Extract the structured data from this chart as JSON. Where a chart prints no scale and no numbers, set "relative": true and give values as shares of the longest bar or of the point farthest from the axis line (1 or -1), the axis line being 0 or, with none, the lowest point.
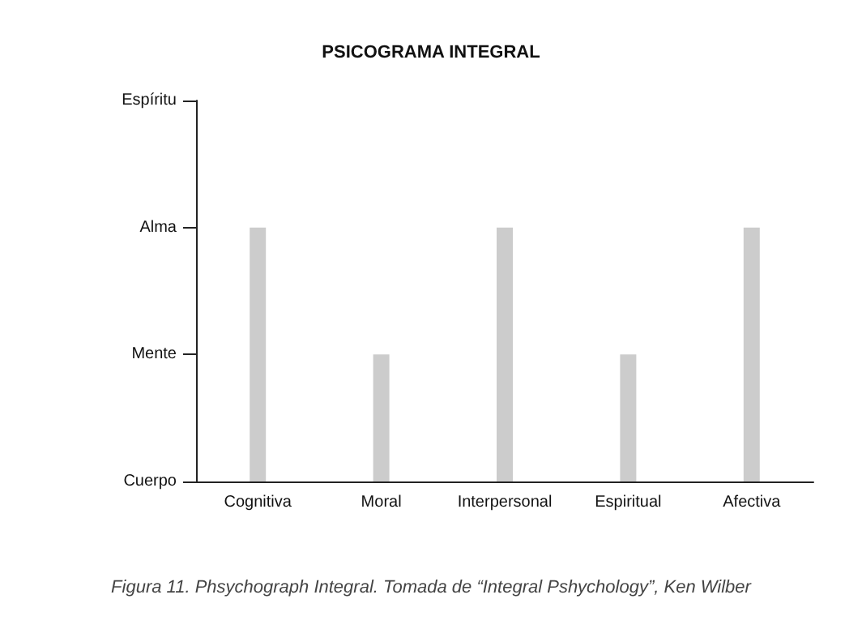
{
  "chart_data": {
    "type": "bar",
    "title": "PSICOGRAMA INTEGRAL",
    "categories": [
      "Cognitiva",
      "Moral",
      "Interpersonal",
      "Espiritual",
      "Afectiva"
    ],
    "values": [
      1,
      0.5,
      1,
      0.5,
      1
    ],
    "color": "#cccccc",
    "relative": true,
    "grid": false,
    "annotations": [
      "Cuerpo",
      "Mente",
      "Alma",
      "Espíritu",
      "Figura 11. Phsychograph Integral. Tomada de “Integral Pshychology”, Ken Wilber"
    ]
  }
}
